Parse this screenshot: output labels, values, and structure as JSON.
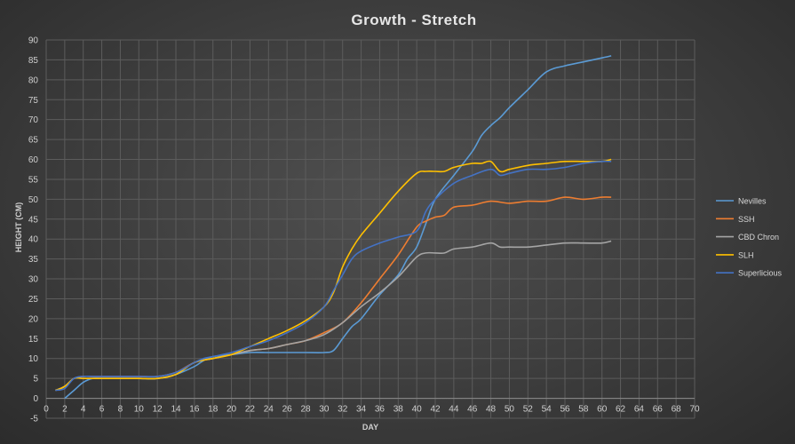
{
  "chart_data": {
    "type": "line",
    "title": "Growth - Stretch",
    "xlabel": "DAY",
    "ylabel": "HEIGHT (CM)",
    "xlim": [
      0,
      70
    ],
    "ylim": [
      -5,
      90
    ],
    "xticks": [
      0,
      2,
      4,
      6,
      8,
      10,
      12,
      14,
      16,
      18,
      20,
      22,
      24,
      26,
      28,
      30,
      32,
      34,
      36,
      38,
      40,
      42,
      44,
      46,
      48,
      50,
      52,
      54,
      56,
      58,
      60,
      62,
      64,
      66,
      68,
      70
    ],
    "yticks": [
      -5,
      0,
      5,
      10,
      15,
      20,
      25,
      30,
      35,
      40,
      45,
      50,
      55,
      60,
      65,
      70,
      75,
      80,
      85,
      90
    ],
    "grid": true,
    "legend_position": "right",
    "series": [
      {
        "name": "Nevilles",
        "color": "#5b9bd5",
        "x": [
          2,
          3,
          4,
          5,
          6,
          8,
          10,
          12,
          14,
          16,
          17,
          18,
          20,
          22,
          24,
          26,
          28,
          30,
          31,
          32,
          33,
          34,
          36,
          38,
          39,
          40,
          41,
          42,
          44,
          46,
          47,
          48,
          49,
          50,
          52,
          54,
          56,
          58,
          60,
          61
        ],
        "y": [
          0,
          2,
          4,
          5,
          5,
          5,
          5,
          5,
          6,
          8,
          9.5,
          10.5,
          11,
          11.5,
          11.5,
          11.5,
          11.5,
          11.5,
          12,
          15,
          18,
          20,
          26,
          31,
          35,
          38,
          44,
          50,
          56,
          62,
          66,
          68.5,
          70.5,
          73,
          77.5,
          82,
          83.5,
          84.5,
          85.5,
          86
        ]
      },
      {
        "name": "SSH",
        "color": "#ed7d31",
        "x": [
          1,
          2,
          3,
          4,
          5,
          6,
          8,
          10,
          12,
          14,
          16,
          18,
          20,
          22,
          24,
          26,
          28,
          30,
          32,
          34,
          36,
          38,
          40,
          41,
          42,
          43,
          44,
          46,
          48,
          50,
          52,
          54,
          56,
          58,
          60,
          61
        ],
        "y": [
          2,
          3,
          5,
          5.5,
          5.5,
          5.5,
          5.5,
          5.5,
          5.5,
          6.5,
          9,
          10,
          11,
          12,
          12.5,
          13.5,
          14.5,
          16.5,
          19,
          24,
          30,
          36,
          43,
          44.5,
          45.5,
          46,
          48,
          48.5,
          49.5,
          49,
          49.5,
          49.5,
          50.5,
          50,
          50.5,
          50.5
        ]
      },
      {
        "name": "CBD Chron",
        "color": "#a5a5a5",
        "x": [
          1,
          2,
          3,
          4,
          5,
          6,
          8,
          10,
          12,
          14,
          16,
          18,
          20,
          22,
          24,
          26,
          28,
          30,
          32,
          34,
          36,
          38,
          40,
          41,
          42,
          43,
          44,
          46,
          48,
          49,
          50,
          52,
          54,
          56,
          58,
          60,
          61
        ],
        "y": [
          2,
          3,
          5,
          5,
          5,
          5,
          5,
          5,
          5,
          6,
          9,
          10,
          11,
          12,
          12.5,
          13.5,
          14.5,
          16,
          19,
          23,
          26.5,
          30.5,
          35.5,
          36.5,
          36.5,
          36.5,
          37.5,
          38,
          39,
          38,
          38,
          38,
          38.5,
          39,
          39,
          39,
          39.5
        ]
      },
      {
        "name": "SLH",
        "color": "#ffc000",
        "x": [
          1,
          2,
          3,
          4,
          5,
          6,
          8,
          10,
          12,
          14,
          16,
          18,
          20,
          22,
          24,
          26,
          28,
          30,
          31,
          32,
          33,
          34,
          36,
          38,
          40,
          41,
          42,
          43,
          44,
          46,
          47,
          48,
          49,
          50,
          52,
          54,
          56,
          58,
          60,
          61
        ],
        "y": [
          2,
          3,
          5,
          5,
          5,
          5,
          5,
          5,
          5,
          6,
          9,
          10,
          11,
          13,
          15,
          17,
          19.5,
          23,
          26.5,
          33,
          37.5,
          41,
          46.5,
          52,
          56.5,
          57,
          57,
          57,
          58,
          59,
          59,
          59.5,
          57,
          57.5,
          58.5,
          59,
          59.5,
          59.5,
          59.5,
          60
        ]
      },
      {
        "name": "Superlicious",
        "color": "#4472c4",
        "x": [
          1,
          2,
          3,
          4,
          5,
          6,
          8,
          10,
          12,
          14,
          16,
          17,
          18,
          20,
          22,
          24,
          26,
          28,
          30,
          31,
          32,
          33,
          34,
          36,
          38,
          40,
          41,
          42,
          44,
          46,
          48,
          49,
          50,
          52,
          54,
          56,
          58,
          60,
          61
        ],
        "y": [
          2,
          2.5,
          5,
          5.5,
          5.5,
          5.5,
          5.5,
          5.5,
          5.5,
          6.5,
          9,
          10,
          10.5,
          11.5,
          13,
          14.5,
          16.5,
          19,
          23,
          27,
          31,
          35,
          37,
          39,
          40.5,
          42,
          47,
          50,
          54,
          56,
          57.5,
          56,
          56.5,
          57.5,
          57.5,
          58,
          59,
          59.5,
          59.5
        ]
      }
    ]
  }
}
